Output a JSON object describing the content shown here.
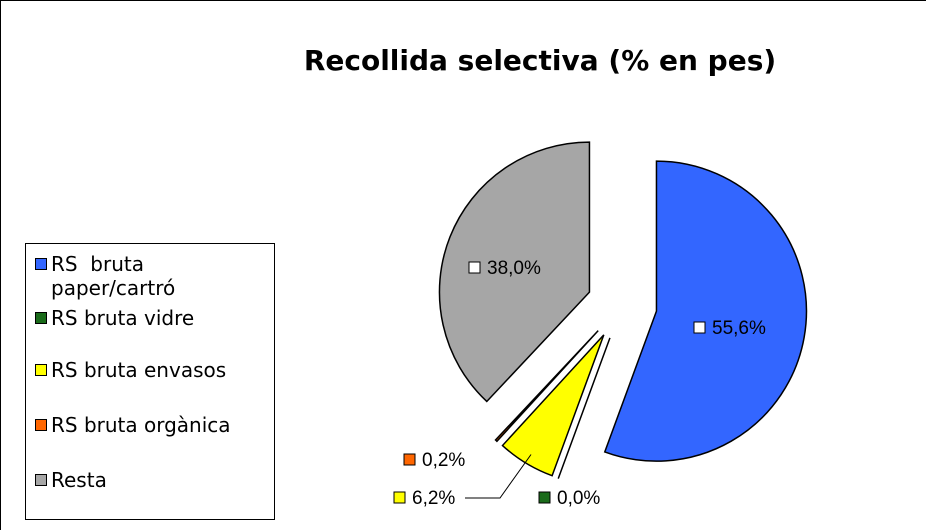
{
  "chart_data": {
    "type": "pie",
    "title": "Recollida selectiva (% en pes)",
    "categories": [
      "RS  bruta paper/cartró",
      "RS bruta vidre",
      "RS bruta envasos",
      "RS bruta orgànica",
      "Resta"
    ],
    "values": [
      55.6,
      0.0,
      6.2,
      0.2,
      38.0
    ],
    "value_labels": [
      "55,6%",
      "0,0%",
      "6,2%",
      "0,2%",
      "38,0%"
    ],
    "colors": [
      "#3366ff",
      "#1a6b1a",
      "#ffff00",
      "#ff6600",
      "#a6a6a6"
    ],
    "legend": "left"
  }
}
